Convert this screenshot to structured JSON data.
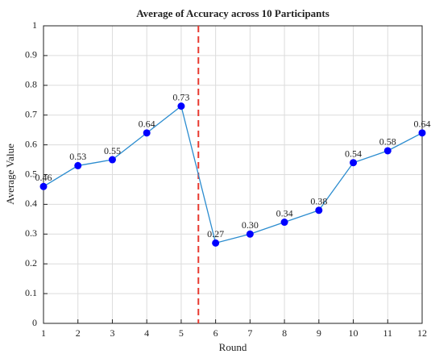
{
  "chart_data": {
    "type": "line",
    "title": "Average of Accuracy across 10 Participants",
    "x_label": "Round",
    "y_label": "Average Value",
    "x": [
      1,
      2,
      3,
      4,
      5,
      6,
      7,
      8,
      9,
      10,
      11,
      12
    ],
    "series": [
      {
        "name": "Average Value",
        "color": "#2b8ccf",
        "marker_color": "#0000ff",
        "values": [
          0.46,
          0.53,
          0.55,
          0.64,
          0.73,
          0.27,
          0.3,
          0.34,
          0.38,
          0.54,
          0.58,
          0.64
        ],
        "value_labels": [
          "0.46",
          "0.53",
          "0.55",
          "0.64",
          "0.73",
          "0.27",
          "0.30",
          "0.34",
          "0.38",
          "0.54",
          "0.58",
          "0.64"
        ]
      }
    ],
    "xlim": [
      1,
      12
    ],
    "xticks": [
      1,
      2,
      3,
      4,
      5,
      6,
      7,
      8,
      9,
      10,
      11,
      12
    ],
    "ylim": [
      0,
      1
    ],
    "yticks": [
      0,
      0.1,
      0.2,
      0.3,
      0.4,
      0.5,
      0.6,
      0.7,
      0.8,
      0.9,
      1
    ],
    "grid": true,
    "vline": {
      "x": 5.5,
      "color": "#e8392f"
    }
  }
}
